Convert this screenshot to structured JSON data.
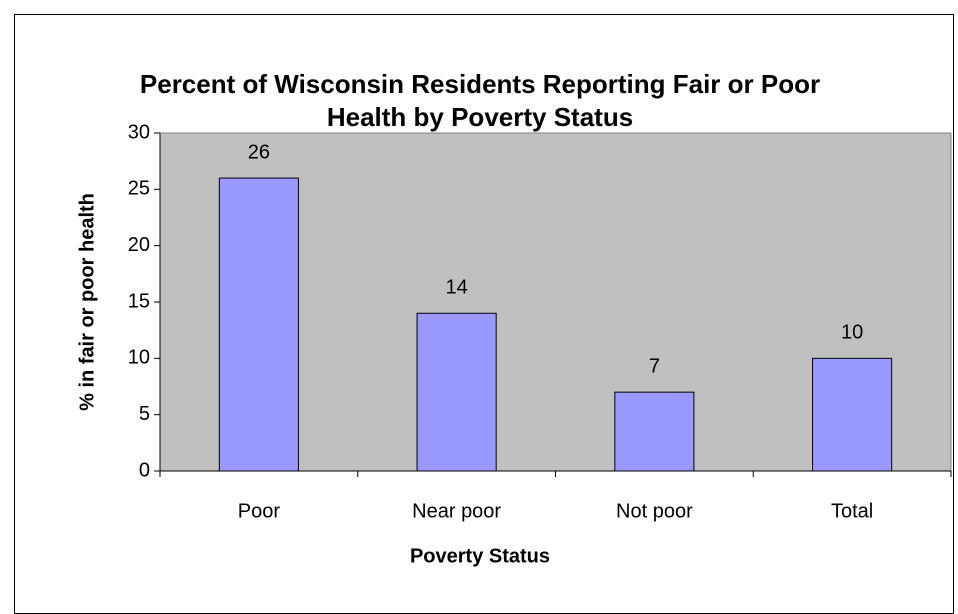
{
  "chart_data": {
    "type": "bar",
    "title": "Percent of Wisconsin Residents Reporting Fair or Poor Health by Poverty Status",
    "x_label": "Poverty Status",
    "y_label": "% in fair or poor health",
    "categories": [
      "Poor",
      "Near poor",
      "Not poor",
      "Total"
    ],
    "values": [
      26,
      14,
      7,
      10
    ],
    "color": "#9999ff",
    "plot_background": "#c0c0c0",
    "ylim": [
      0,
      30
    ],
    "yticks": [
      0,
      5,
      10,
      15,
      20,
      25,
      30
    ],
    "grid": false
  }
}
